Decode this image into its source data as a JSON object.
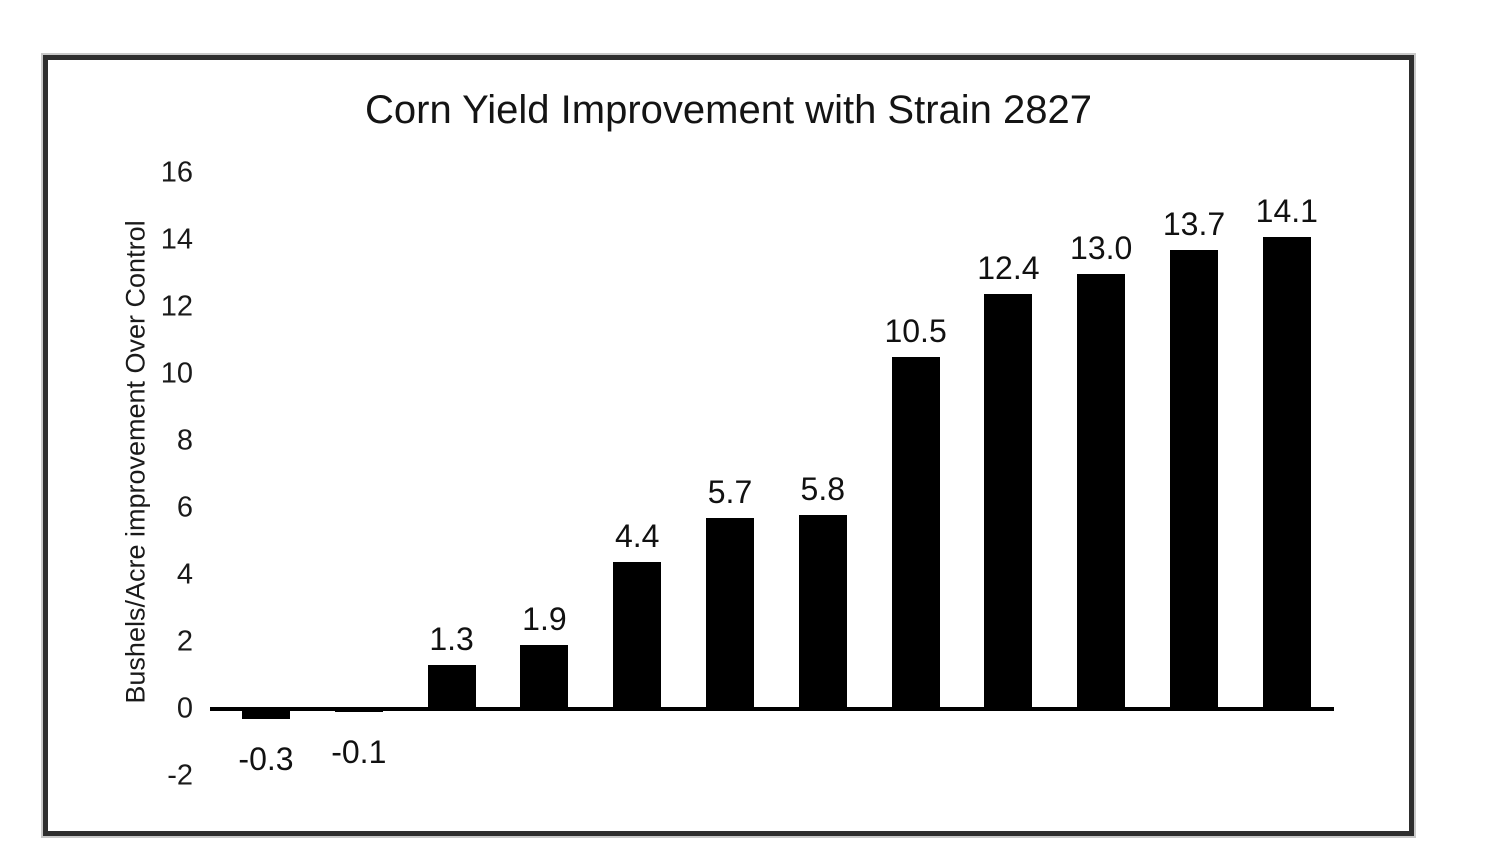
{
  "frame": {
    "border_color": "#2e2e2e",
    "background": "#ffffff"
  },
  "chart_data": {
    "type": "bar",
    "title": "Corn Yield Improvement with Strain 2827",
    "ylabel": "Bushels/Acre improvement Over Control",
    "xlabel": "",
    "values": [
      -0.3,
      -0.1,
      1.3,
      1.9,
      4.4,
      5.7,
      5.8,
      10.5,
      12.4,
      13.0,
      13.7,
      14.1
    ],
    "value_labels": [
      "-0.3",
      "-0.1",
      "1.3",
      "1.9",
      "4.4",
      "5.7",
      "5.8",
      "10.5",
      "12.4",
      "13.0",
      "13.7",
      "14.1"
    ],
    "x_category_labels_visible": false,
    "yticks": [
      16,
      14,
      12,
      10,
      8,
      6,
      4,
      2,
      0,
      -2
    ],
    "ylim": [
      -2,
      16
    ],
    "bar_color": "#000000",
    "text_color": "#1a1a1a",
    "grid": false,
    "legend": false
  }
}
